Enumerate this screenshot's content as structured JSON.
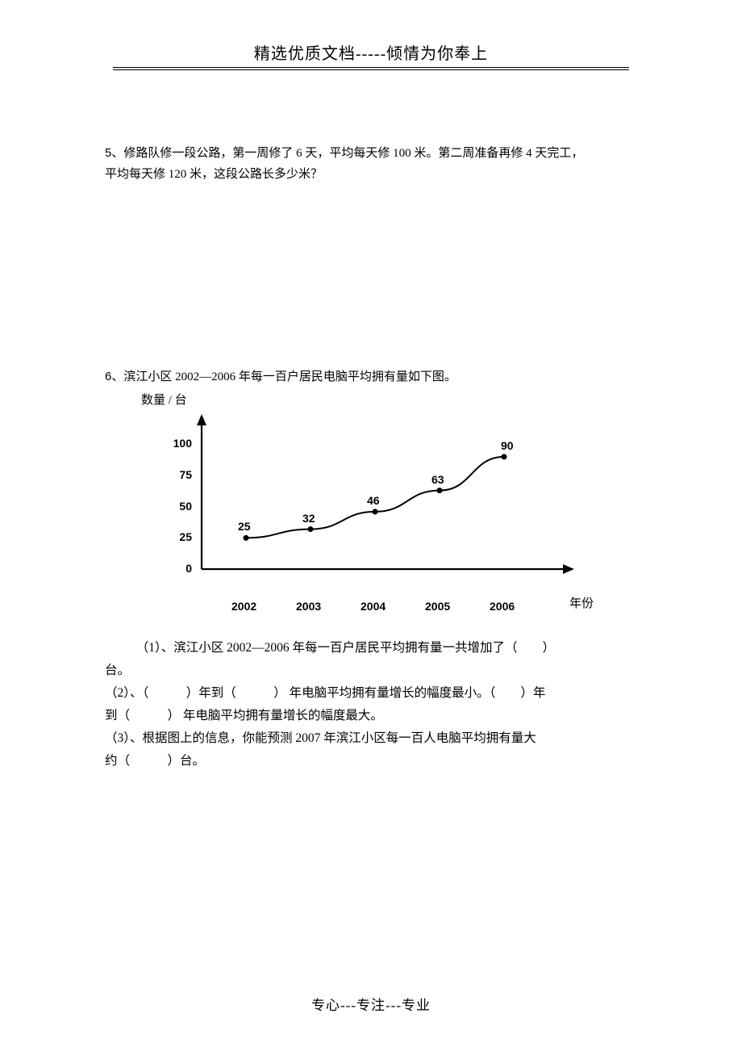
{
  "header": {
    "title": "精选优质文档-----倾情为你奉上"
  },
  "q5": {
    "num": "5",
    "text_a": "、修路队修一段公路，第一周修了 6 天，平均每天修 100 米。第二周准备再修 4 天完工，",
    "text_b": "平均每天修 120 米，这段公路长多少米？"
  },
  "q6": {
    "num": "6",
    "intro": "、滨江小区 2002—2006 年每一百户居民电脑平均拥有量如下图。",
    "chart": {
      "type": "line",
      "ylabel": "数量 / 台",
      "xlabel": "年份",
      "bg": "#ffffff",
      "axis_color": "#000000",
      "line_color": "#000000",
      "point_color": "#000000",
      "line_width": 2,
      "point_radius": 3.5,
      "ylim": [
        0,
        110
      ],
      "yticks": [
        0,
        25,
        50,
        75,
        100
      ],
      "categories": [
        "2002",
        "2003",
        "2004",
        "2005",
        "2006"
      ],
      "values": [
        25,
        32,
        46,
        63,
        90
      ],
      "value_label_fontsize": 14,
      "tick_fontsize": 14,
      "tick_fontweight": "bold"
    },
    "sub1_a": "（1）、滨江小区 2002—2006 年每一百户居民平均拥有量一共增加了（　　）",
    "sub1_b": "台。",
    "sub2_a": "（2）、（　　　）年到（　　　） 年电脑平均拥有量增长的幅度最小。（　　）年",
    "sub2_b": "到（　　　） 年电脑平均拥有量增长的幅度最大。",
    "sub3_a": "（3）、根据图上的信息，你能预测 2007 年滨江小区每一百人电脑平均拥有量大",
    "sub3_b": "约（　　　）台。"
  },
  "footer": {
    "text": "专心---专注---专业"
  }
}
